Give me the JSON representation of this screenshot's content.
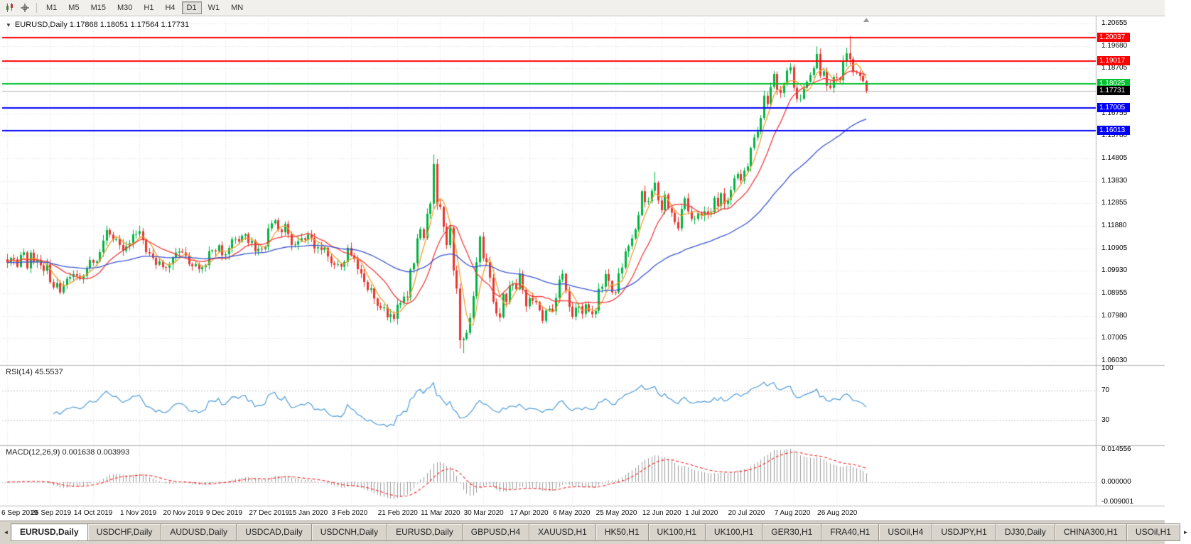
{
  "toolbar": {
    "timeframes": [
      "M1",
      "M5",
      "M15",
      "M30",
      "H1",
      "H4",
      "D1",
      "W1",
      "MN"
    ],
    "active_timeframe": "D1",
    "icons": [
      "candlestick-chart-icon",
      "crosshair-icon"
    ]
  },
  "chart": {
    "title": "EURUSD,Daily 1.17868 1.18051 1.17564 1.17731",
    "symbol": "EURUSD",
    "timeframe": "Daily",
    "ohlc": {
      "open": "1.17868",
      "high": "1.18051",
      "low": "1.17564",
      "close": "1.17731"
    }
  },
  "rsi_panel": {
    "label": "RSI(14) 45.5537"
  },
  "macd_panel": {
    "label": "MACD(12,26,9) 0.001638 0.003993"
  },
  "tabs": {
    "active_index": 0,
    "items": [
      "EURUSD,Daily",
      "USDCHF,Daily",
      "AUDUSD,Daily",
      "USDCAD,Daily",
      "USDCNH,Daily",
      "EURUSD,Daily",
      "GBPUSD,H4",
      "XAUUSD,H1",
      "HK50,H1",
      "UK100,H1",
      "UK100,H1",
      "GER30,H1",
      "FRA40,H1",
      "USOil,H4",
      "USDJPY,H1",
      "DJ30,Daily",
      "CHINA300,H1",
      "USOil,H1"
    ]
  },
  "chart_data": {
    "type": "candlestick",
    "symbol": "EURUSD",
    "period": "Daily",
    "y_axis": {
      "max": 1.20655,
      "min": 1.0603,
      "step": 0.00975,
      "decimals": 5
    },
    "x_labels": [
      {
        "i": 0,
        "t": "6 Sep 2019"
      },
      {
        "i": 13,
        "t": "25 Sep 2019"
      },
      {
        "i": 26,
        "t": "14 Oct 2019"
      },
      {
        "i": 40,
        "t": "1 Nov 2019"
      },
      {
        "i": 53,
        "t": "20 Nov 2019"
      },
      {
        "i": 66,
        "t": "9 Dec 2019"
      },
      {
        "i": 79,
        "t": "27 Dec 2019"
      },
      {
        "i": 91,
        "t": "15 Jan 2020"
      },
      {
        "i": 104,
        "t": "3 Feb 2020"
      },
      {
        "i": 118,
        "t": "21 Feb 2020"
      },
      {
        "i": 131,
        "t": "11 Mar 2020"
      },
      {
        "i": 144,
        "t": "30 Mar 2020"
      },
      {
        "i": 158,
        "t": "17 Apr 2020"
      },
      {
        "i": 171,
        "t": "6 May 2020"
      },
      {
        "i": 184,
        "t": "25 May 2020"
      },
      {
        "i": 198,
        "t": "12 Jun 2020"
      },
      {
        "i": 211,
        "t": "1 Jul 2020"
      },
      {
        "i": 224,
        "t": "20 Jul 2020"
      },
      {
        "i": 238,
        "t": "7 Aug 2020"
      },
      {
        "i": 251,
        "t": "26 Aug 2020"
      }
    ],
    "closes": [
      1.1028,
      1.1049,
      1.1043,
      1.101,
      1.1062,
      1.1073,
      1.1004,
      1.1072,
      1.103,
      1.1041,
      1.1017,
      1.0993,
      1.1021,
      1.0944,
      1.0921,
      1.094,
      1.0899,
      1.0932,
      1.0959,
      1.0966,
      1.0979,
      1.0972,
      1.0957,
      1.0971,
      1.1005,
      1.104,
      1.1028,
      1.1034,
      1.1074,
      1.1124,
      1.117,
      1.115,
      1.1128,
      1.1132,
      1.1105,
      1.108,
      1.1099,
      1.1113,
      1.1151,
      1.1152,
      1.1165,
      1.1126,
      1.1074,
      1.1068,
      1.1049,
      1.1019,
      1.1034,
      1.1009,
      1.1007,
      1.1021,
      1.1051,
      1.1072,
      1.1077,
      1.1073,
      1.1059,
      1.1021,
      1.1013,
      1.1022,
      1.1,
      1.1009,
      1.1018,
      1.1078,
      1.1082,
      1.1077,
      1.1104,
      1.106,
      1.1065,
      1.1092,
      1.113,
      1.1131,
      1.112,
      1.1145,
      1.1152,
      1.1114,
      1.1123,
      1.1078,
      1.1089,
      1.1088,
      1.1098,
      1.1177,
      1.1199,
      1.1212,
      1.1172,
      1.116,
      1.1196,
      1.1152,
      1.1105,
      1.1107,
      1.1121,
      1.1134,
      1.1127,
      1.115,
      1.1136,
      1.109,
      1.1095,
      1.1084,
      1.1093,
      1.1055,
      1.1026,
      1.1019,
      1.1022,
      1.1011,
      1.1032,
      1.1093,
      1.106,
      1.1044,
      1.1,
      1.0982,
      1.0945,
      1.091,
      1.0917,
      1.0873,
      1.0841,
      1.0831,
      1.0835,
      1.0792,
      1.0805,
      1.0785,
      1.0846,
      1.0853,
      1.0881,
      1.088,
      1.0999,
      1.1026,
      1.1134,
      1.1173,
      1.1135,
      1.124,
      1.1284,
      1.1456,
      1.1281,
      1.127,
      1.1184,
      1.1105,
      1.118,
      1.0995,
      1.0916,
      1.0692,
      1.0698,
      1.0724,
      1.0789,
      1.0883,
      1.103,
      1.1141,
      1.1047,
      1.1031,
      1.0963,
      1.0859,
      1.0808,
      1.0791,
      1.0893,
      1.0858,
      1.093,
      1.0935,
      1.0913,
      1.098,
      1.0911,
      1.0839,
      1.0875,
      1.0863,
      1.0857,
      1.0822,
      1.0776,
      1.0821,
      1.0829,
      1.0818,
      1.0875,
      1.0955,
      1.098,
      1.0906,
      1.0837,
      1.0794,
      1.0833,
      1.0839,
      1.0807,
      1.0848,
      1.0817,
      1.0805,
      1.082,
      1.0915,
      1.0924,
      1.0979,
      1.0949,
      1.09,
      1.0899,
      1.0982,
      1.1007,
      1.1077,
      1.1101,
      1.1134,
      1.1172,
      1.1234,
      1.1338,
      1.1291,
      1.1295,
      1.134,
      1.1375,
      1.1298,
      1.1256,
      1.1323,
      1.1264,
      1.1245,
      1.1204,
      1.1177,
      1.1261,
      1.1307,
      1.1251,
      1.1218,
      1.1219,
      1.1242,
      1.1234,
      1.1251,
      1.1239,
      1.1248,
      1.1309,
      1.1274,
      1.1329,
      1.1284,
      1.13,
      1.1343,
      1.1394,
      1.1413,
      1.1384,
      1.1427,
      1.1446,
      1.1526,
      1.1571,
      1.1596,
      1.1656,
      1.1752,
      1.1716,
      1.179,
      1.1846,
      1.1778,
      1.1764,
      1.1802,
      1.1861,
      1.1876,
      1.1787,
      1.1738,
      1.1739,
      1.1786,
      1.1813,
      1.1842,
      1.1871,
      1.1933,
      1.1839,
      1.1858,
      1.1796,
      1.1786,
      1.1833,
      1.183,
      1.182,
      1.1903,
      1.1936,
      1.1911,
      1.1854,
      1.1852,
      1.1838,
      1.1815,
      1.17731
    ],
    "wick_overrides": {
      "115": {
        "l": 1.0778
      },
      "129": {
        "h": 1.1497
      },
      "137": {
        "l": 1.0656
      },
      "138": {
        "l": 1.0636
      },
      "167": {
        "h": 1.0972
      },
      "196": {
        "h": 1.1422
      },
      "245": {
        "h": 1.1966
      },
      "255": {
        "h": 1.2011
      }
    },
    "levels": [
      {
        "price": 1.20037,
        "label": "1.20037",
        "color": "#ff0000"
      },
      {
        "price": 1.19017,
        "label": "1.19017",
        "color": "#ff0000"
      },
      {
        "price": 1.18025,
        "label": "1.18025",
        "color": "#00c22e"
      },
      {
        "price": 1.17005,
        "label": "1.17005",
        "color": "#0000ff"
      },
      {
        "price": 1.16013,
        "label": "1.16013",
        "color": "#0000ff"
      }
    ],
    "current_price": {
      "value": 1.17731,
      "label": "1.17731"
    },
    "moving_averages": [
      {
        "period": 5,
        "method": "sma",
        "color": "#f0a030"
      },
      {
        "period": 13,
        "method": "sma",
        "color": "#f23b3b"
      },
      {
        "period": 55,
        "method": "ema",
        "color": "#3b55d0"
      }
    ],
    "rsi": {
      "period": 14,
      "current": "45.5537",
      "levels": [
        70,
        30
      ],
      "axis_labels": [
        "100",
        "70",
        "30"
      ]
    },
    "macd": {
      "fast": 12,
      "slow": 26,
      "signal": 9,
      "current_main": "0.001638",
      "current_signal": "0.003993",
      "axis_labels": [
        "0.014556",
        "0.000000",
        "-0.009001"
      ]
    },
    "colors": {
      "bull": "#00b341",
      "bear": "#e8352e",
      "rsi_line": "#4f9bd8",
      "macd_hist": "#9b9b9b",
      "macd_signal": "#ff1f1f",
      "grid": "#e2e2e2",
      "separator": "#b3b3b3",
      "current_price_line": "#b8b8b8"
    }
  }
}
